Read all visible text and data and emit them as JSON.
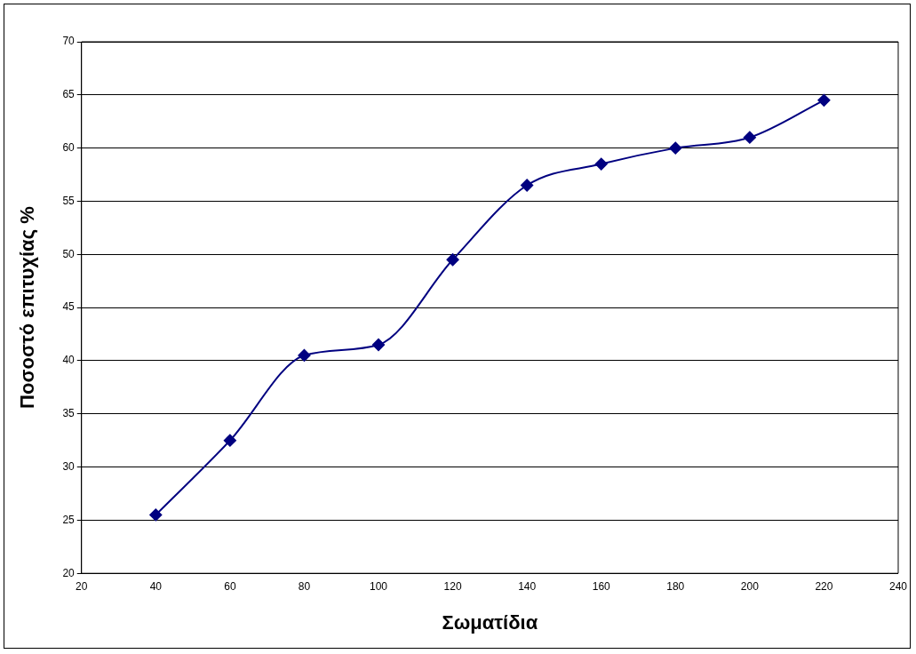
{
  "chart_data": {
    "type": "line",
    "xlabel": "Σωματίδια",
    "ylabel": "Ποσοστό επιτυχίας %",
    "x": [
      40,
      60,
      80,
      100,
      120,
      140,
      160,
      180,
      200,
      220
    ],
    "series": [
      {
        "color": "#000080",
        "values": [
          25.5,
          32.5,
          40.5,
          41.5,
          49.5,
          56.5,
          58.5,
          60,
          61,
          64.5
        ]
      }
    ],
    "xlim": [
      20,
      240
    ],
    "xticks": [
      20,
      40,
      60,
      80,
      100,
      120,
      140,
      160,
      180,
      200,
      220,
      240
    ],
    "ylim": [
      20,
      70
    ],
    "yticks": [
      20,
      25,
      30,
      35,
      40,
      45,
      50,
      55,
      60,
      65,
      70
    ],
    "grid": "y",
    "legend": false,
    "marker": "diamond",
    "line_style": "solid"
  }
}
